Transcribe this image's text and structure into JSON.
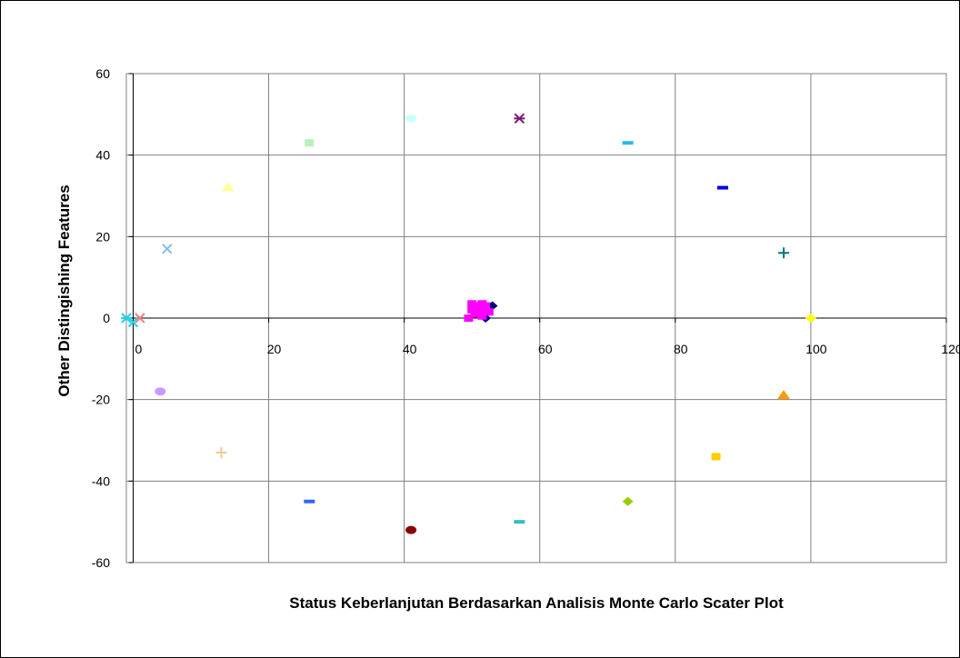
{
  "chart_data": {
    "type": "scatter",
    "title": "",
    "xlabel": "Status Keberlanjutan Berdasarkan Analisis Monte Carlo Scater Plot",
    "ylabel": "Other Distingishing Features",
    "xlim": [
      -1,
      120
    ],
    "ylim": [
      -60,
      60
    ],
    "x_ticks": [
      0,
      20,
      40,
      60,
      80,
      100,
      120
    ],
    "y_ticks": [
      -60,
      -40,
      -20,
      0,
      20,
      40,
      60
    ],
    "x_tick_labels": [
      "0",
      "20",
      "40",
      "60",
      "80",
      "100",
      "120"
    ],
    "y_tick_labels": [
      "-60",
      "-40",
      "-20",
      "0",
      "20",
      "40",
      "60"
    ],
    "grid": true,
    "legend": "none",
    "points": [
      {
        "x": -1,
        "y": 0,
        "marker": "star",
        "color": "#22d3e8"
      },
      {
        "x": 0,
        "y": -1,
        "marker": "x",
        "color": "#22d3e8"
      },
      {
        "x": 1,
        "y": 0,
        "marker": "x",
        "color": "#ff8080"
      },
      {
        "x": 5,
        "y": 17,
        "marker": "x",
        "color": "#88bbee"
      },
      {
        "x": 14,
        "y": 32,
        "marker": "triangle",
        "color": "#ffff99"
      },
      {
        "x": 26,
        "y": 43,
        "marker": "square",
        "color": "#bbf0bb"
      },
      {
        "x": 41,
        "y": 49,
        "marker": "circle",
        "color": "#ccffff"
      },
      {
        "x": 57,
        "y": 49,
        "marker": "star",
        "color": "#7a1a6a"
      },
      {
        "x": 73,
        "y": 43,
        "marker": "dash",
        "color": "#22bbee"
      },
      {
        "x": 87,
        "y": 32,
        "marker": "dash",
        "color": "#0000ee"
      },
      {
        "x": 96,
        "y": 16,
        "marker": "plus",
        "color": "#007777"
      },
      {
        "x": 100,
        "y": 0,
        "marker": "diamond",
        "color": "#ffff00"
      },
      {
        "x": 96,
        "y": -19,
        "marker": "triangle",
        "color": "#ff9900"
      },
      {
        "x": 86,
        "y": -34,
        "marker": "square",
        "color": "#ffcc00"
      },
      {
        "x": 73,
        "y": -45,
        "marker": "diamond",
        "color": "#99cc00"
      },
      {
        "x": 57,
        "y": -50,
        "marker": "dash",
        "color": "#33bbcc"
      },
      {
        "x": 41,
        "y": -52,
        "marker": "circle",
        "color": "#8b0000"
      },
      {
        "x": 26,
        "y": -45,
        "marker": "dash",
        "color": "#3366ff"
      },
      {
        "x": 13,
        "y": -33,
        "marker": "plus",
        "color": "#f5c89a"
      },
      {
        "x": 4,
        "y": -18,
        "marker": "circle",
        "color": "#cc99ff"
      },
      {
        "x": 53,
        "y": 3,
        "marker": "diamond",
        "color": "#000080"
      },
      {
        "x": 52,
        "y": 0,
        "marker": "diamond",
        "color": "#000080"
      },
      {
        "x": 49.5,
        "y": 0,
        "marker": "square",
        "color": "#ff00ff"
      },
      {
        "x": 50,
        "y": 2,
        "marker": "square",
        "color": "#ff00ff"
      },
      {
        "x": 50.5,
        "y": 3,
        "marker": "square",
        "color": "#ff00ff"
      },
      {
        "x": 51,
        "y": 1.5,
        "marker": "square",
        "color": "#ff00ff"
      },
      {
        "x": 51.5,
        "y": 3.5,
        "marker": "square",
        "color": "#ff00ff"
      },
      {
        "x": 52,
        "y": 2,
        "marker": "square",
        "color": "#ff00ff"
      },
      {
        "x": 50.5,
        "y": 1,
        "marker": "square",
        "color": "#ff00ff"
      },
      {
        "x": 51,
        "y": 3,
        "marker": "square",
        "color": "#ff00ff"
      },
      {
        "x": 52.5,
        "y": 1.5,
        "marker": "square",
        "color": "#ff00ff"
      },
      {
        "x": 51.5,
        "y": 0.5,
        "marker": "square",
        "color": "#ff00ff"
      },
      {
        "x": 50,
        "y": 3.5,
        "marker": "square",
        "color": "#ff00ff"
      },
      {
        "x": 52,
        "y": 3,
        "marker": "square",
        "color": "#ff00ff"
      }
    ]
  }
}
